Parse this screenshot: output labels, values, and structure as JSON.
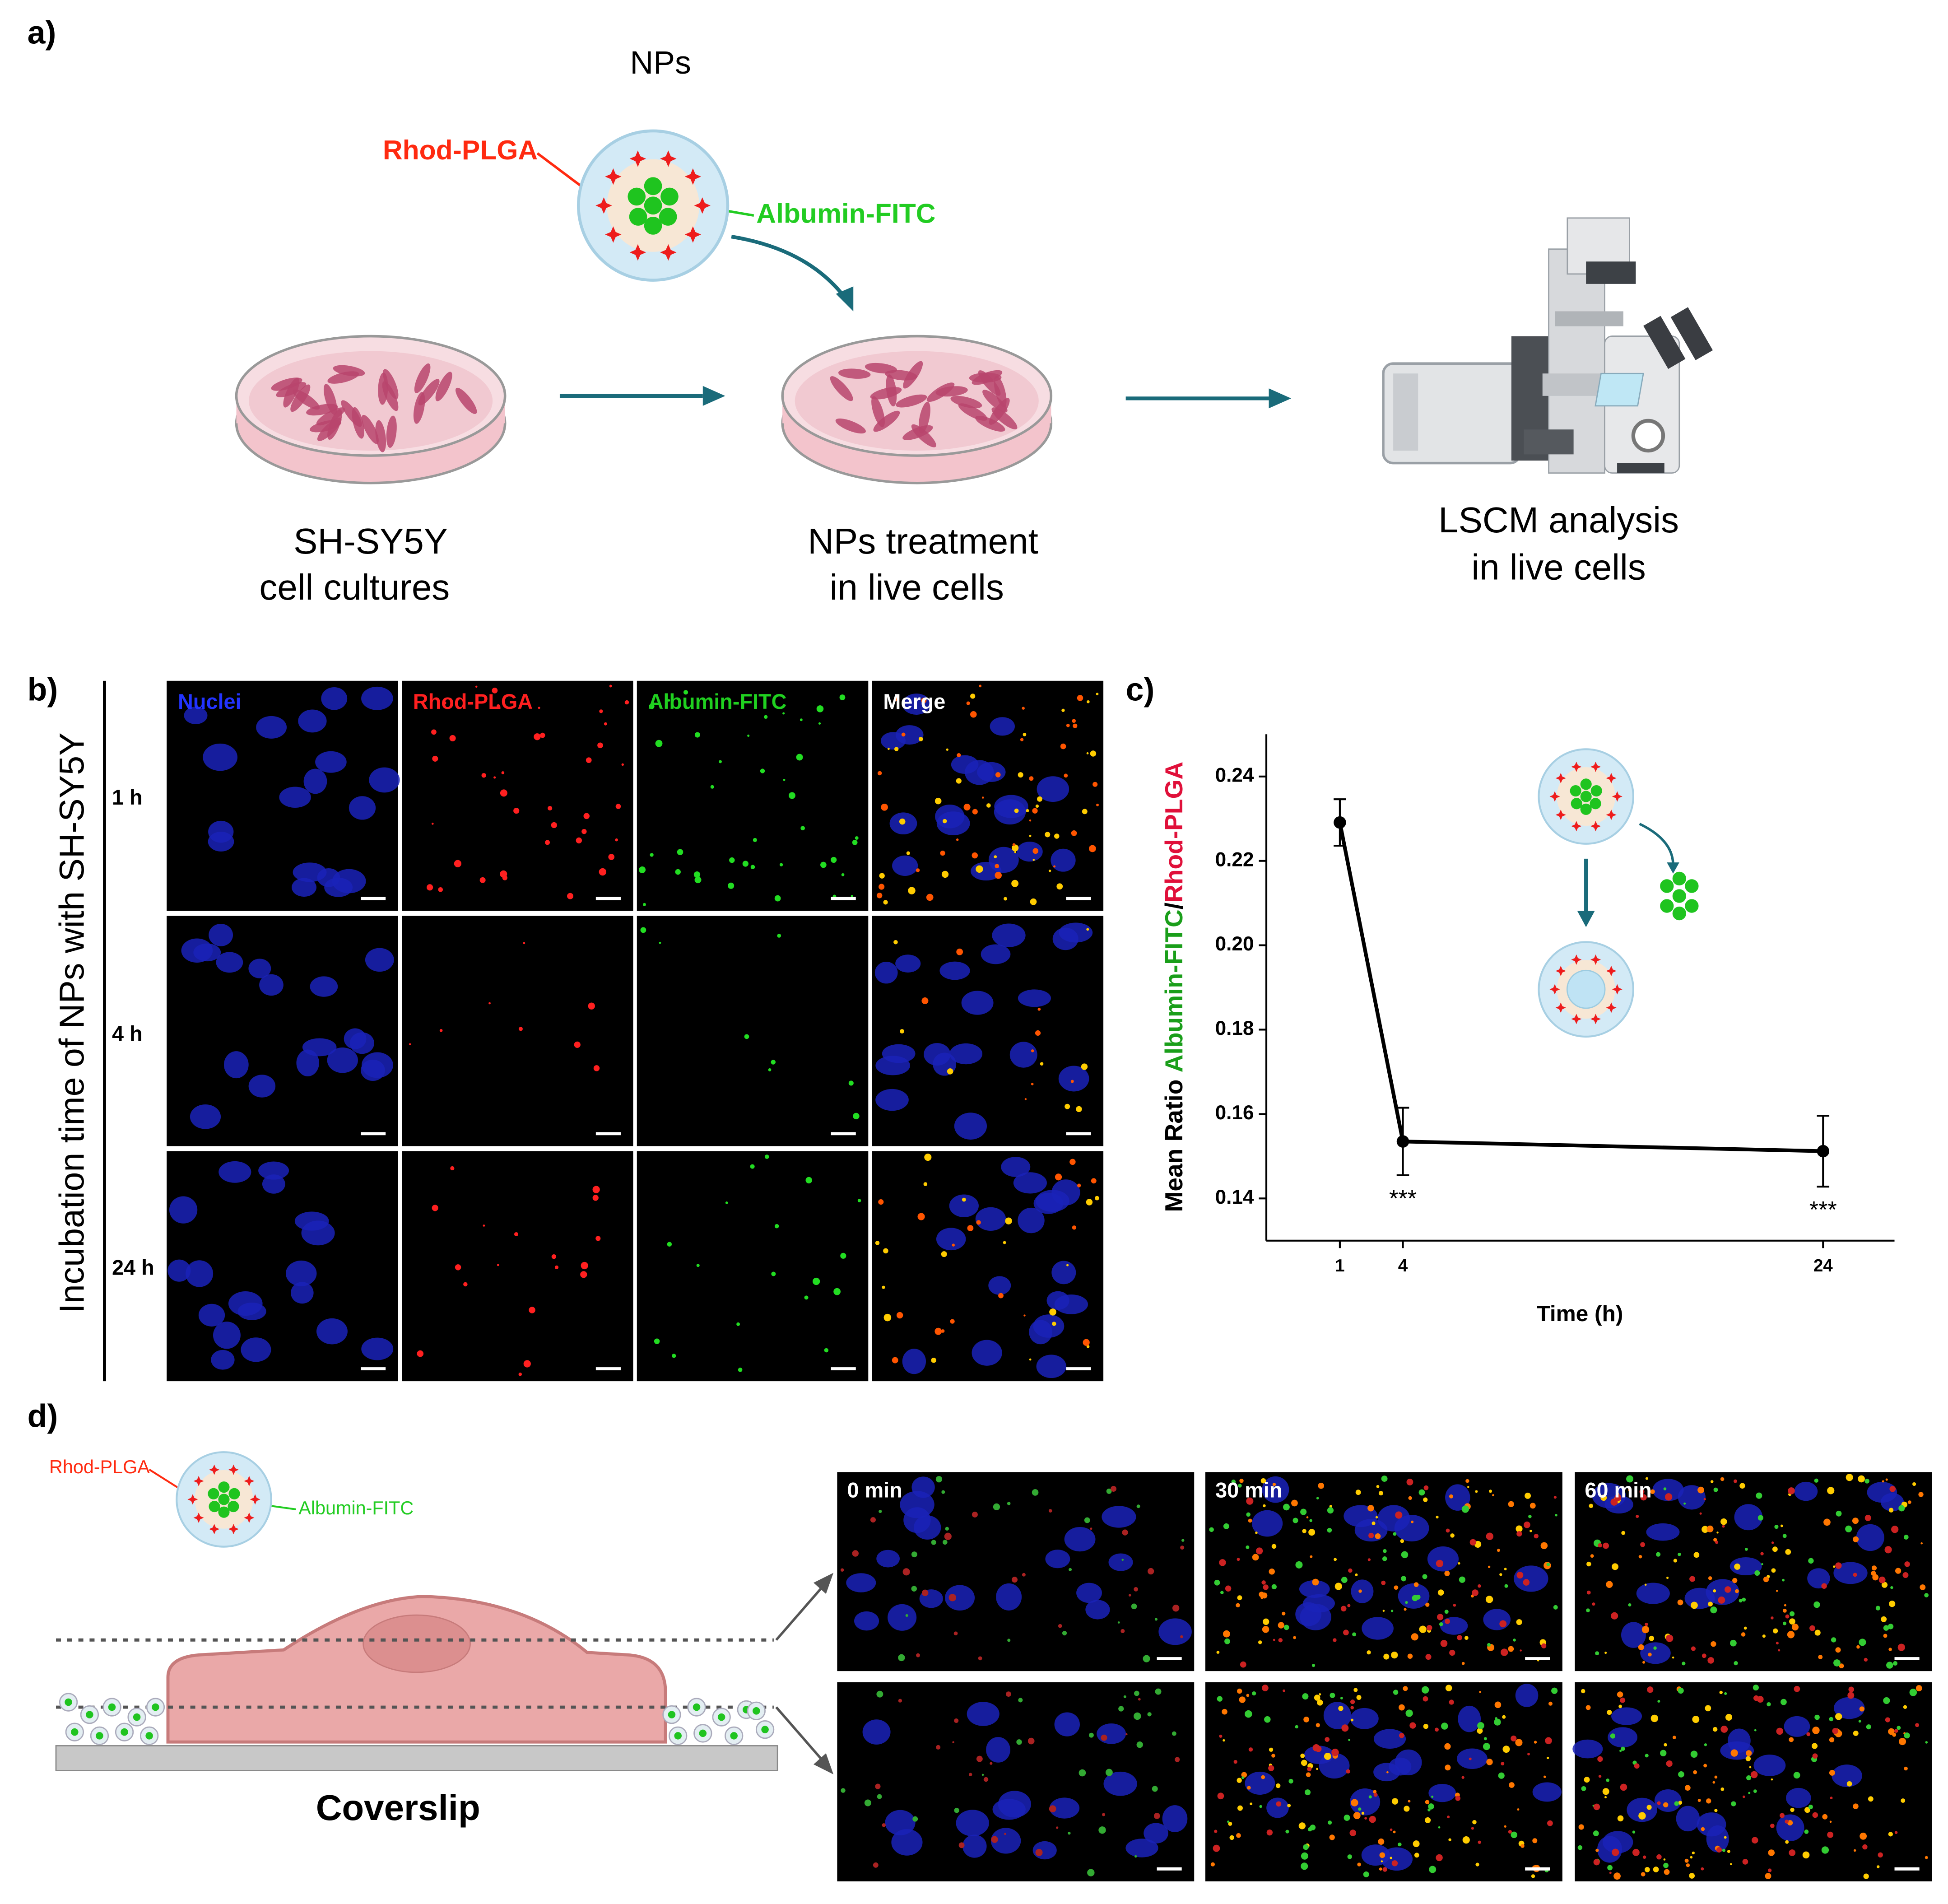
{
  "panel_a": {
    "label": "a)",
    "np_title": "NPs",
    "rhod": "Rhod-PLGA",
    "albumin": "Albumin-FITC",
    "steps": [
      [
        "SH-SY5Y",
        "cell cultures"
      ],
      [
        "NPs treatment",
        "in live cells"
      ],
      [
        "LSCM analysis",
        "in live cells"
      ]
    ]
  },
  "panel_b": {
    "label": "b)",
    "side_label": "Incubation time of NPs with SH-SY5Y",
    "channels": [
      {
        "name": "Nuclei",
        "color": "#2233ff"
      },
      {
        "name": "Rhod-PLGA",
        "color": "#ff2020"
      },
      {
        "name": "Albumin-FITC",
        "color": "#20d020"
      },
      {
        "name": "Merge",
        "color": "#ffffff"
      }
    ],
    "rows": [
      "1 h",
      "4 h",
      "24 h"
    ]
  },
  "panel_c": {
    "label": "c)",
    "type": "line",
    "x_label": "Time (h)",
    "y_label_parts": [
      {
        "text": "Mean Ratio ",
        "color": "#000000"
      },
      {
        "text": "Albumin-FITC",
        "color": "#1a9e1a"
      },
      {
        "text": "/",
        "color": "#000000"
      },
      {
        "text": "Rhod-PLGA",
        "color": "#e0103a"
      }
    ],
    "x": [
      1,
      4,
      24
    ],
    "values": [
      0.2291,
      0.1535,
      0.1512
    ],
    "errors": [
      0.0055,
      0.008,
      0.0084
    ],
    "significance": [
      null,
      "***",
      "***"
    ],
    "xlim": [
      -2.5,
      27.4
    ],
    "ylim": [
      0.13,
      0.25
    ],
    "xticks": [
      1,
      4,
      24
    ],
    "yticks": [
      0.14,
      0.16,
      0.18,
      {
        "value": 0.2,
        "label": "0.20"
      },
      0.22,
      0.24
    ],
    "color": "#000000"
  },
  "panel_d": {
    "label": "d)",
    "rhod": "Rhod-PLGA",
    "albumin": "Albumin-FITC",
    "coverslip": "Coverslip",
    "times": [
      "0 min",
      "30 min",
      "60 min"
    ]
  }
}
